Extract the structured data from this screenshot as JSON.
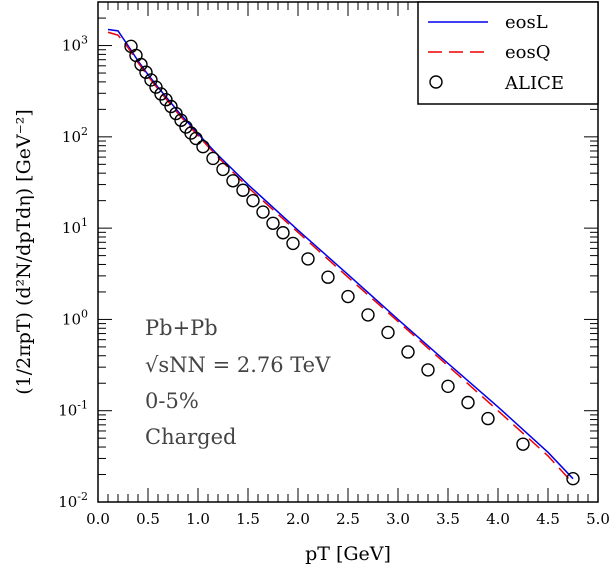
{
  "chart_data": {
    "type": "line",
    "title": "",
    "xlabel": "pT [GeV]",
    "ylabel": "(1/2πpT) (d²N/dpTdη) [GeV⁻²]",
    "xlim": [
      0.0,
      5.0
    ],
    "ylim": [
      0.01,
      3000
    ],
    "y_scale": "log",
    "x_ticks": [
      "0.0",
      "0.5",
      "1.0",
      "1.5",
      "2.0",
      "2.5",
      "3.0",
      "3.5",
      "4.0",
      "4.5",
      "5.0"
    ],
    "y_ticks": [
      {
        "value": 0.01,
        "base": "10",
        "exp": "-2"
      },
      {
        "value": 0.1,
        "base": "10",
        "exp": "-1"
      },
      {
        "value": 1,
        "base": "10",
        "exp": "0"
      },
      {
        "value": 10,
        "base": "10",
        "exp": "1"
      },
      {
        "value": 100,
        "base": "10",
        "exp": "2"
      },
      {
        "value": 1000,
        "base": "10",
        "exp": "3"
      }
    ],
    "legend_position": "top-right",
    "grid": false,
    "series": [
      {
        "name": "eosL",
        "style": "solid",
        "color": "#0000ee",
        "x": [
          0.1,
          0.2,
          0.3,
          0.4,
          0.5,
          0.6,
          0.8,
          1.0,
          1.2,
          1.5,
          2.0,
          2.5,
          3.0,
          3.5,
          4.0,
          4.5,
          4.75
        ],
        "y": [
          1500,
          1450,
          1000,
          680,
          480,
          350,
          190,
          108,
          63,
          30,
          9.5,
          3.1,
          1.0,
          0.33,
          0.11,
          0.035,
          0.018
        ]
      },
      {
        "name": "eosQ",
        "style": "dashed",
        "color": "#ee0000",
        "x": [
          0.1,
          0.2,
          0.3,
          0.4,
          0.5,
          0.6,
          0.8,
          1.0,
          1.2,
          1.5,
          2.0,
          2.5,
          3.0,
          3.5,
          4.0,
          4.5,
          4.75
        ],
        "y": [
          1400,
          1300,
          950,
          650,
          460,
          335,
          180,
          103,
          60,
          28,
          9.0,
          2.9,
          0.95,
          0.31,
          0.1,
          0.032,
          0.016
        ]
      },
      {
        "name": "ALICE",
        "style": "marker-open-circle",
        "color": "#000000",
        "x": [
          0.33,
          0.38,
          0.43,
          0.48,
          0.53,
          0.58,
          0.63,
          0.68,
          0.73,
          0.78,
          0.83,
          0.88,
          0.93,
          0.98,
          1.05,
          1.15,
          1.25,
          1.35,
          1.45,
          1.55,
          1.65,
          1.75,
          1.85,
          1.95,
          2.1,
          2.3,
          2.5,
          2.7,
          2.9,
          3.1,
          3.3,
          3.5,
          3.7,
          3.9,
          4.25,
          4.75
        ],
        "y": [
          980,
          780,
          620,
          510,
          420,
          350,
          295,
          255,
          215,
          180,
          152,
          128,
          110,
          96,
          78,
          58,
          44,
          33,
          26,
          20,
          15,
          11.3,
          8.9,
          6.8,
          4.6,
          2.9,
          1.78,
          1.12,
          0.72,
          0.44,
          0.28,
          0.185,
          0.123,
          0.082,
          0.043,
          0.018
        ]
      }
    ],
    "annotations": [
      {
        "text": "Pb+Pb"
      },
      {
        "text": "√sNN = 2.76 TeV"
      },
      {
        "text": "0-5%"
      },
      {
        "text": "Charged"
      }
    ]
  }
}
